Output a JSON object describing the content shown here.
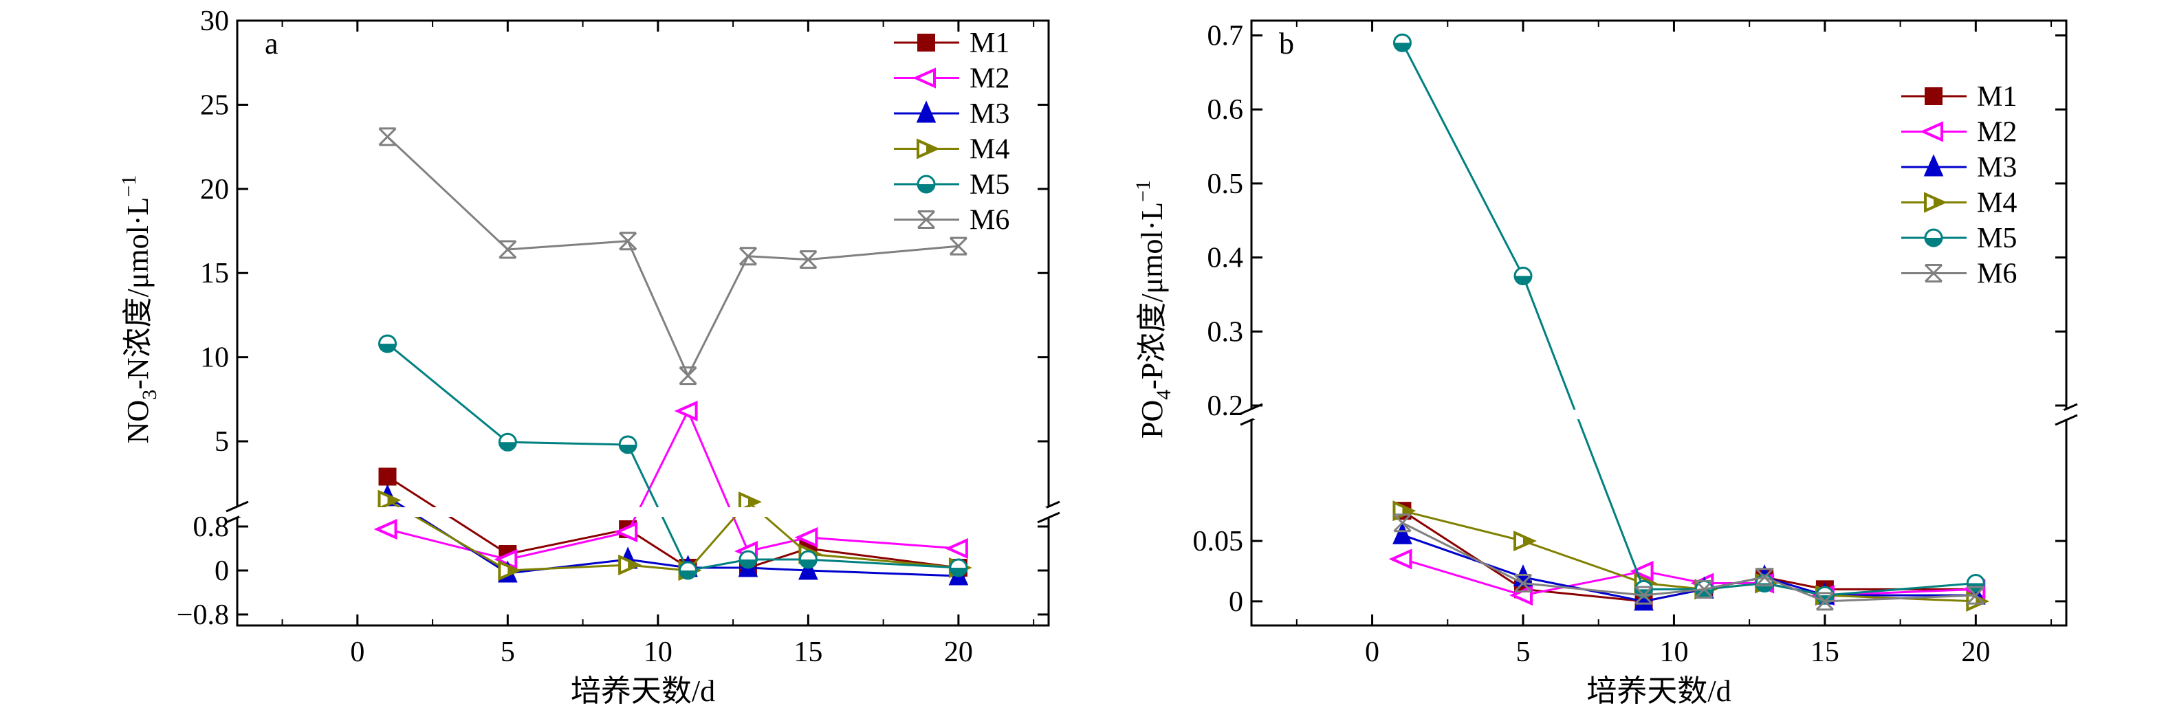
{
  "colors": {
    "M1": "#8b0000",
    "M2": "#ff00ff",
    "M3": "#0000cd",
    "M4": "#808000",
    "M5": "#008080",
    "M6": "#808080"
  },
  "chart_data": [
    {
      "type": "line",
      "panel_label": "a",
      "xlabel": "培养天数/d",
      "ylabel_parts": [
        "NO",
        "3",
        "-N浓度/μmol·L",
        "−1"
      ],
      "xlim": [
        -4,
        23
      ],
      "x_ticks": [
        0,
        5,
        10,
        15,
        20
      ],
      "y_axis_break": true,
      "ylim_lower": [
        -1.0,
        1.0
      ],
      "ylim_upper": [
        1.0,
        30
      ],
      "y_ticks_lower": [
        {
          "v": -0.8,
          "label": "−0.8"
        },
        {
          "v": 0,
          "label": "0"
        },
        {
          "v": 0.8,
          "label": "0.8"
        }
      ],
      "y_ticks_upper": [
        {
          "v": 5,
          "label": "5"
        },
        {
          "v": 10,
          "label": "10"
        },
        {
          "v": 15,
          "label": "15"
        },
        {
          "v": 20,
          "label": "20"
        },
        {
          "v": 25,
          "label": "25"
        },
        {
          "v": 30,
          "label": "30"
        }
      ],
      "legend_position": "top-right",
      "x": [
        1,
        5,
        9,
        11,
        13,
        15,
        20
      ],
      "series": [
        {
          "name": "M1",
          "marker": "square",
          "values": [
            2.9,
            0.3,
            0.75,
            0.05,
            0.05,
            0.4,
            0.05
          ]
        },
        {
          "name": "M2",
          "marker": "triangle-left",
          "values": [
            0.75,
            0.2,
            0.7,
            6.8,
            0.35,
            0.6,
            0.4
          ]
        },
        {
          "name": "M3",
          "marker": "triangle-up",
          "values": [
            1.7,
            -0.05,
            0.2,
            0.05,
            0.05,
            0.0,
            -0.1
          ]
        },
        {
          "name": "M4",
          "marker": "triangle-right",
          "values": [
            1.5,
            0.0,
            0.1,
            0.0,
            1.4,
            0.3,
            0.05
          ]
        },
        {
          "name": "M5",
          "marker": "half-circle",
          "values": [
            10.8,
            4.95,
            4.8,
            0.0,
            0.2,
            0.2,
            0.05
          ]
        },
        {
          "name": "M6",
          "marker": "star",
          "values": [
            23.1,
            16.4,
            16.9,
            8.9,
            16.0,
            15.8,
            16.6
          ]
        }
      ]
    },
    {
      "type": "line",
      "panel_label": "b",
      "xlabel": "培养天数/d",
      "ylabel_parts": [
        "PO",
        "4",
        "-P浓度/μmol·L",
        "−1"
      ],
      "xlim": [
        -4,
        23
      ],
      "x_ticks": [
        0,
        5,
        10,
        15,
        20
      ],
      "y_axis_break": true,
      "ylim_lower": [
        -0.02,
        0.148
      ],
      "ylim_upper": [
        0.2,
        0.72
      ],
      "y_ticks_lower": [
        {
          "v": 0,
          "label": "0"
        },
        {
          "v": 0.05,
          "label": "0.05"
        }
      ],
      "y_ticks_upper": [
        {
          "v": 0.2,
          "label": "0.2"
        },
        {
          "v": 0.3,
          "label": "0.3"
        },
        {
          "v": 0.4,
          "label": "0.4"
        },
        {
          "v": 0.5,
          "label": "0.5"
        },
        {
          "v": 0.6,
          "label": "0.6"
        },
        {
          "v": 0.7,
          "label": "0.7"
        }
      ],
      "legend_position": "top-right",
      "x": [
        1,
        5,
        9,
        11,
        13,
        15,
        20
      ],
      "series": [
        {
          "name": "M1",
          "marker": "square",
          "values": [
            0.075,
            0.01,
            0.0,
            0.01,
            0.02,
            0.01,
            0.01
          ]
        },
        {
          "name": "M2",
          "marker": "triangle-left",
          "values": [
            0.035,
            0.005,
            0.025,
            0.015,
            0.015,
            0.005,
            0.01
          ]
        },
        {
          "name": "M3",
          "marker": "triangle-up",
          "values": [
            0.055,
            0.02,
            0.0,
            0.01,
            0.02,
            0.005,
            0.005
          ]
        },
        {
          "name": "M4",
          "marker": "triangle-right",
          "values": [
            0.075,
            0.05,
            0.015,
            0.01,
            0.015,
            0.005,
            0.0
          ]
        },
        {
          "name": "M5",
          "marker": "half-circle",
          "values": [
            0.69,
            0.375,
            0.01,
            0.01,
            0.015,
            0.005,
            0.015
          ]
        },
        {
          "name": "M6",
          "marker": "star",
          "values": [
            0.065,
            0.015,
            0.005,
            0.01,
            0.02,
            0.0,
            0.005
          ]
        }
      ]
    }
  ]
}
